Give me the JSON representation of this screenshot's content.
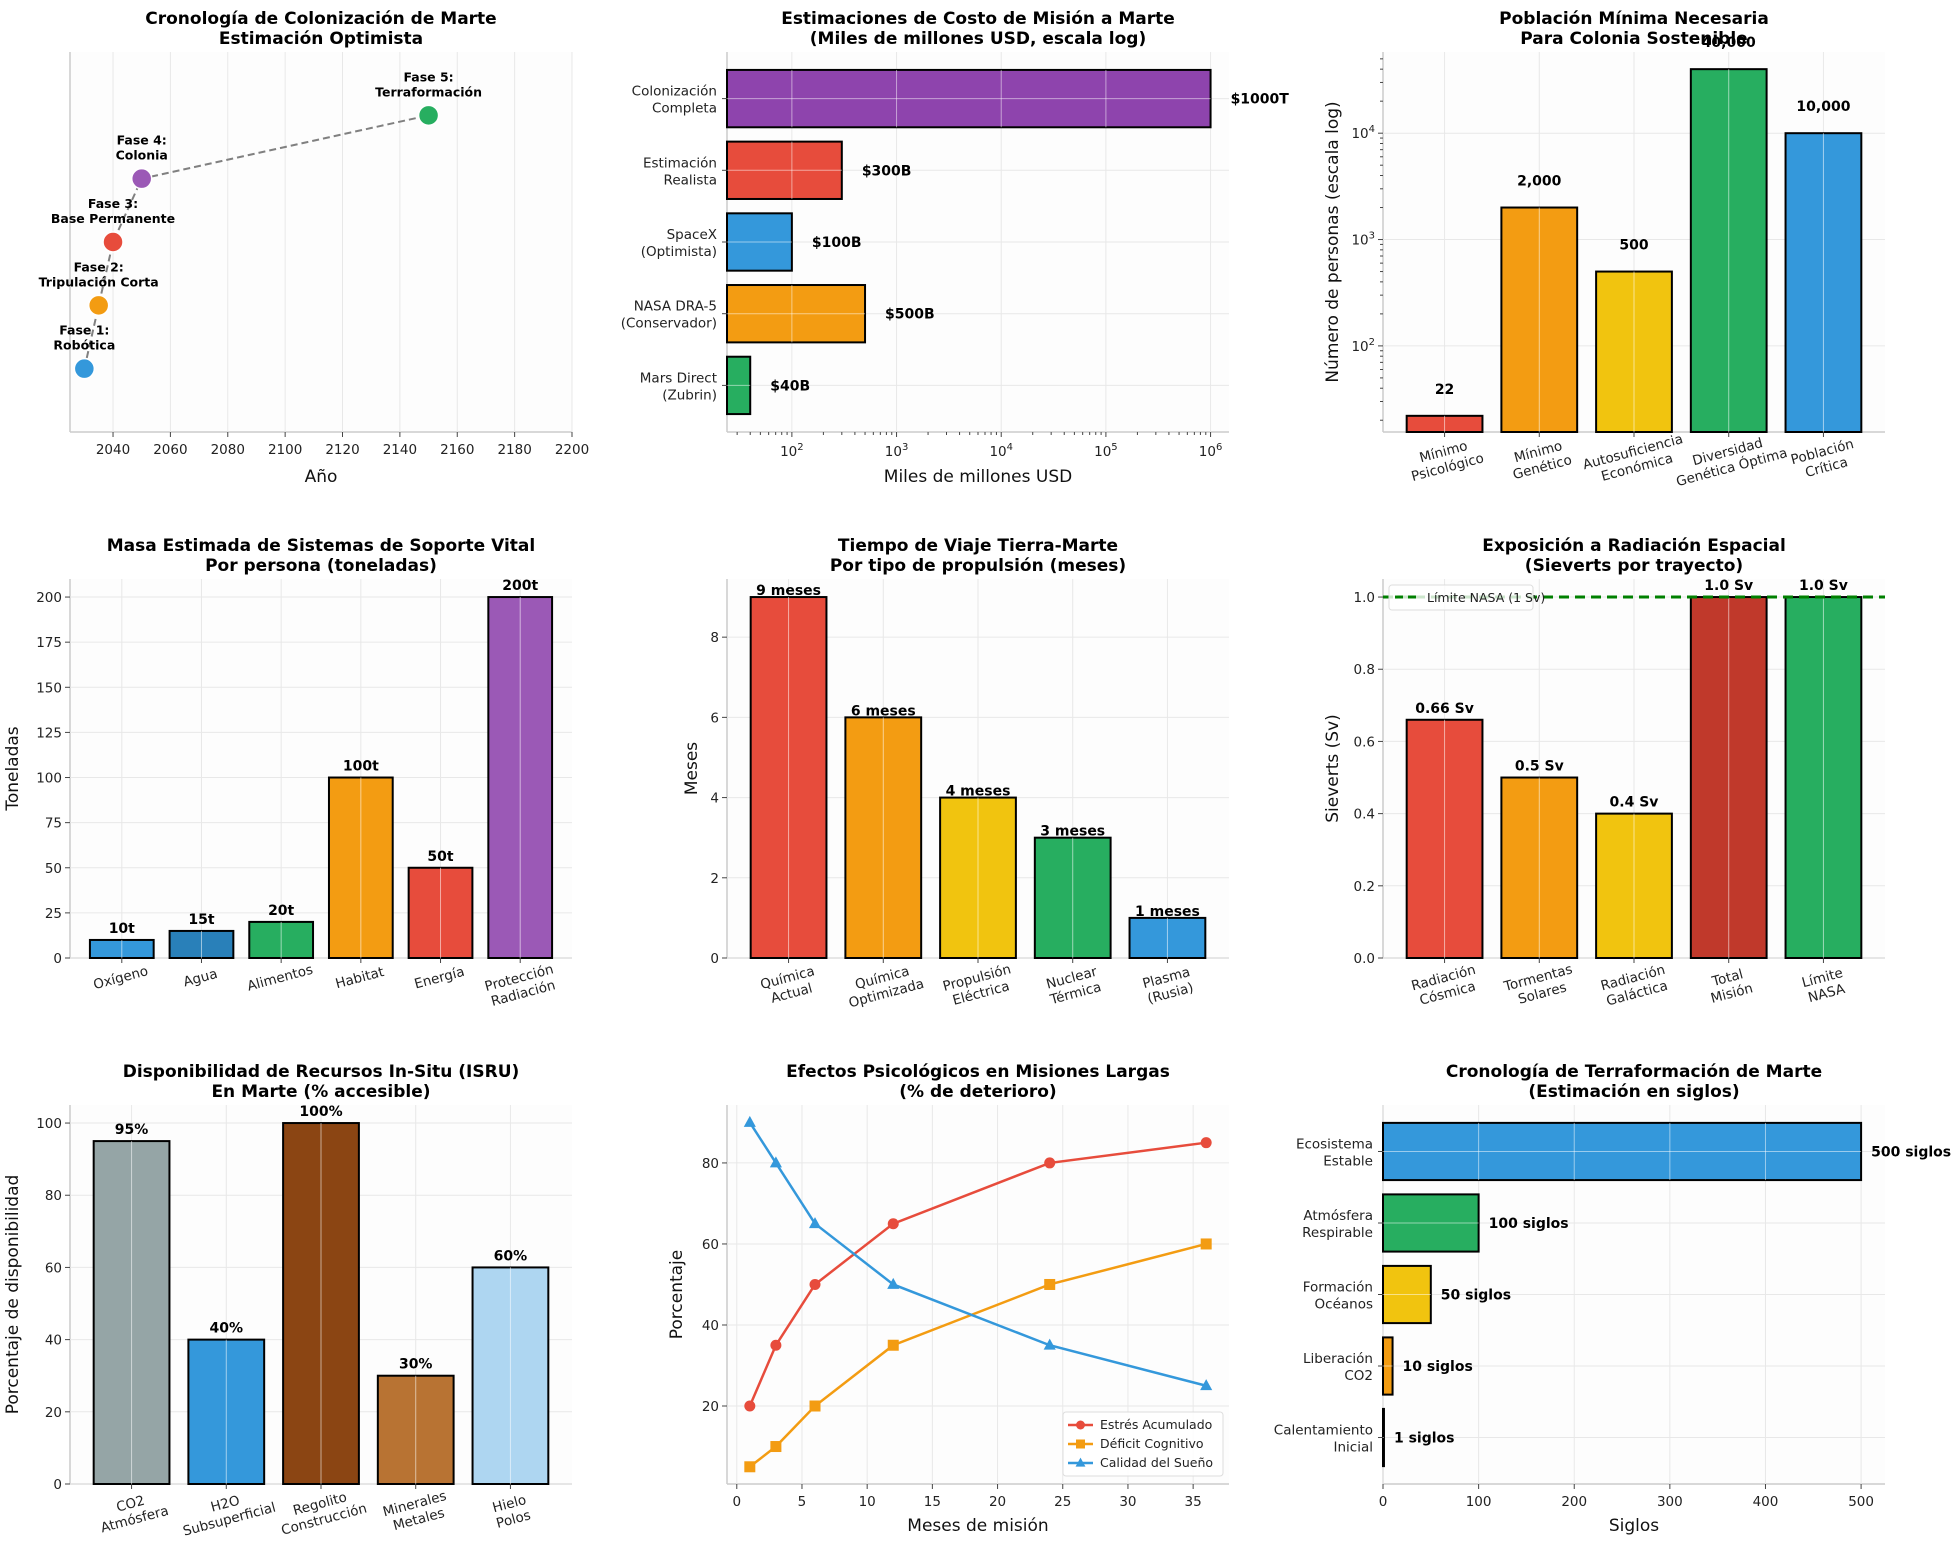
{
  "chart_data": [
    {
      "id": "timeline",
      "type": "scatter",
      "title": "Cronología de Colonización de Marte\nEstimación Optimista",
      "xlabel": "Año",
      "ylabel": "",
      "xlim": [
        2025,
        2200
      ],
      "ylim": [
        0,
        6
      ],
      "xticks": [
        2040,
        2060,
        2080,
        2100,
        2120,
        2140,
        2160,
        2180,
        2200
      ],
      "connector": "dashed",
      "points": [
        {
          "x": 2030,
          "y": 1,
          "label": "Fase 1:\nRobótica",
          "color": "#3498db"
        },
        {
          "x": 2035,
          "y": 2,
          "label": "Fase 2:\nTripulación Corta",
          "color": "#f39c12"
        },
        {
          "x": 2040,
          "y": 3,
          "label": "Fase 3:\nBase Permanente",
          "color": "#e74c3c"
        },
        {
          "x": 2050,
          "y": 4,
          "label": "Fase 4:\nColonia",
          "color": "#9b59b6"
        },
        {
          "x": 2150,
          "y": 5,
          "label": "Fase 5:\nTerraformación",
          "color": "#27ae60"
        }
      ]
    },
    {
      "id": "costs",
      "type": "bar",
      "orientation": "horizontal",
      "scale": "log",
      "title": "Estimaciones de Costo de Misión a Marte\n(Miles de millones USD, escala log)",
      "xlabel": "Miles de millones USD",
      "ylabel": "",
      "xlim": [
        24,
        1500000
      ],
      "xticks": [
        "10^2",
        "10^3",
        "10^4",
        "10^5",
        "10^6"
      ],
      "categories": [
        "Mars Direct\n(Zubrin)",
        "NASA DRA-5\n(Conservador)",
        "SpaceX\n(Optimista)",
        "Estimación\nRealista",
        "Colonización\nCompleta"
      ],
      "values": [
        40,
        500,
        100,
        300,
        1000000
      ],
      "value_labels": [
        "$40B",
        "$500B",
        "$100B",
        "$300B",
        "$1000T"
      ],
      "colors": [
        "#27ae60",
        "#f39c12",
        "#3498db",
        "#e74c3c",
        "#8e44ad"
      ]
    },
    {
      "id": "population",
      "type": "bar",
      "scale": "log",
      "title": "Población Mínima Necesaria\nPara Colonia Sostenible",
      "xlabel": "",
      "ylabel": "Número de personas (escala log)",
      "ylim": [
        15.5,
        58000
      ],
      "yticks": [
        "10^2",
        "10^3",
        "10^4"
      ],
      "categories": [
        "Mínimo\nPsicológico",
        "Mínimo\nGenético",
        "Autosuficiencia\nEconómica",
        "Diversidad\nGenética Óptima",
        "Población\nCrítica"
      ],
      "values": [
        22,
        2000,
        500,
        40000,
        10000
      ],
      "value_labels": [
        "22",
        "2,000",
        "500",
        "40,000",
        "10,000"
      ],
      "colors": [
        "#e74c3c",
        "#f39c12",
        "#f1c40f",
        "#27ae60",
        "#3498db"
      ]
    },
    {
      "id": "lifesupport",
      "type": "bar",
      "title": "Masa Estimada de Sistemas de Soporte Vital\nPor persona (toneladas)",
      "xlabel": "",
      "ylabel": "Toneladas",
      "ylim": [
        0,
        210
      ],
      "yticks": [
        0,
        25,
        50,
        75,
        100,
        125,
        150,
        175,
        200
      ],
      "categories": [
        "Oxígeno",
        "Agua",
        "Alimentos",
        "Habitat",
        "Energía",
        "Protección\nRadiación"
      ],
      "values": [
        10,
        15,
        20,
        100,
        50,
        200
      ],
      "value_labels": [
        "10t",
        "15t",
        "20t",
        "100t",
        "50t",
        "200t"
      ],
      "colors": [
        "#3498db",
        "#2980b9",
        "#27ae60",
        "#f39c12",
        "#e74c3c",
        "#9b59b6"
      ]
    },
    {
      "id": "traveltime",
      "type": "bar",
      "title": "Tiempo de Viaje Tierra-Marte\nPor tipo de propulsión (meses)",
      "xlabel": "",
      "ylabel": "Meses",
      "ylim": [
        0,
        9.45
      ],
      "yticks": [
        0,
        2,
        4,
        6,
        8
      ],
      "categories": [
        "Química\nActual",
        "Química\nOptimizada",
        "Propulsión\nEléctrica",
        "Nuclear\nTérmica",
        "Plasma\n(Rusia)"
      ],
      "values": [
        9,
        6,
        4,
        3,
        1
      ],
      "value_labels": [
        "9 meses",
        "6 meses",
        "4 meses",
        "3 meses",
        "1 meses"
      ],
      "colors": [
        "#e74c3c",
        "#f39c12",
        "#f1c40f",
        "#27ae60",
        "#3498db"
      ]
    },
    {
      "id": "radiation",
      "type": "bar",
      "title": "Exposición a Radiación Espacial\n(Sieverts por trayecto)",
      "xlabel": "",
      "ylabel": "Sieverts (Sv)",
      "ylim": [
        0,
        1.05
      ],
      "yticks": [
        "0.0",
        "0.2",
        "0.4",
        "0.6",
        "0.8",
        "1.0"
      ],
      "categories": [
        "Radiación\nCósmica",
        "Tormentas\nSolares",
        "Radiación\nGaláctica",
        "Total\nMisión",
        "Límite\nNASA"
      ],
      "values": [
        0.66,
        0.5,
        0.4,
        1.0,
        1.0
      ],
      "value_labels": [
        "0.66 Sv",
        "0.5 Sv",
        "0.4 Sv",
        "1.0 Sv",
        "1.0 Sv"
      ],
      "colors": [
        "#e74c3c",
        "#f39c12",
        "#f1c40f",
        "#c0392b",
        "#27ae60"
      ],
      "reference_line": {
        "value": 1.0,
        "label": "Límite NASA (1 Sv)",
        "color": "#008000",
        "style": "dashed"
      },
      "legend": "top-left"
    },
    {
      "id": "isru",
      "type": "bar",
      "title": "Disponibilidad de Recursos In-Situ (ISRU)\nEn Marte (% accesible)",
      "xlabel": "",
      "ylabel": "Porcentaje de disponibilidad",
      "ylim": [
        0,
        105
      ],
      "yticks": [
        0,
        20,
        40,
        60,
        80,
        100
      ],
      "categories": [
        "CO2\nAtmósfera",
        "H2O\nSubsuperficial",
        "Regolito\nConstrucción",
        "Minerales\nMetales",
        "Hielo\nPolos"
      ],
      "values": [
        95,
        40,
        100,
        30,
        60
      ],
      "value_labels": [
        "95%",
        "40%",
        "100%",
        "30%",
        "60%"
      ],
      "colors": [
        "#95a5a6",
        "#3498db",
        "#8b4513",
        "#b87333",
        "#aed6f1"
      ]
    },
    {
      "id": "psych",
      "type": "line",
      "title": "Efectos Psicológicos en Misiones Largas\n(% de deterioro)",
      "xlabel": "Meses de misión",
      "ylabel": "Porcentaje",
      "xlim": [
        -0.75,
        37.75
      ],
      "ylim": [
        0.75,
        94.3
      ],
      "xticks": [
        0,
        5,
        10,
        15,
        20,
        25,
        30,
        35
      ],
      "yticks": [
        20,
        40,
        60,
        80
      ],
      "x": [
        1,
        3,
        6,
        12,
        24,
        36
      ],
      "series": [
        {
          "name": "Estrés Acumulado",
          "values": [
            20,
            35,
            50,
            65,
            80,
            85
          ],
          "color": "#e74c3c",
          "marker": "circle"
        },
        {
          "name": "Déficit Cognitivo",
          "values": [
            5,
            10,
            20,
            35,
            50,
            60
          ],
          "color": "#f39c12",
          "marker": "square"
        },
        {
          "name": "Calidad del Sueño",
          "values": [
            90,
            80,
            65,
            50,
            35,
            25
          ],
          "color": "#3498db",
          "marker": "triangle"
        }
      ],
      "legend": "bottom-right"
    },
    {
      "id": "terraform",
      "type": "bar",
      "orientation": "horizontal",
      "title": "Cronología de Terraformación de Marte\n(Estimación en siglos)",
      "xlabel": "Siglos",
      "ylabel": "",
      "xlim": [
        0,
        525
      ],
      "xticks": [
        0,
        100,
        200,
        300,
        400,
        500
      ],
      "categories": [
        "Calentamiento\nInicial",
        "Liberación\nCO2",
        "Formación\nOcéanos",
        "Atmósfera\nRespirable",
        "Ecosistema\nEstable"
      ],
      "values": [
        1,
        10,
        50,
        100,
        500
      ],
      "value_labels": [
        "1 siglos",
        "10 siglos",
        "50 siglos",
        "100 siglos",
        "500 siglos"
      ],
      "colors": [
        "#e74c3c",
        "#f39c12",
        "#f1c40f",
        "#27ae60",
        "#3498db"
      ]
    }
  ]
}
